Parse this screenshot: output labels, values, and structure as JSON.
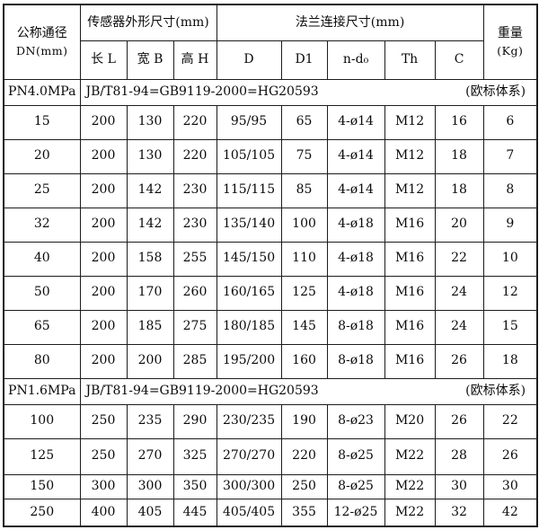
{
  "colors": {
    "border": "#1c1c1c",
    "text": "#0a0a0a",
    "background": "#ffffff"
  },
  "table": {
    "header": {
      "dn_line1": "公称通径",
      "dn_line2": "DN(mm)",
      "sensor_group_label": "传感器外形尺寸(mm)",
      "flange_group_label": "法兰连接尺寸(mm)",
      "weight_line1": "重量",
      "weight_line2": "(Kg)",
      "sub_labels": [
        "长 L",
        "宽 B",
        "高 H",
        "D",
        "D1",
        "n-d₀",
        "Th",
        "C"
      ]
    },
    "sections": [
      {
        "pressure": "PN4.0MPa",
        "standard": "JB/T81-94=GB9119-2000=HG20593",
        "note": "(欧标体系)",
        "rows": [
          [
            "15",
            "200",
            "130",
            "220",
            "95/95",
            "65",
            "4-ø14",
            "M12",
            "16",
            "6"
          ],
          [
            "20",
            "200",
            "130",
            "220",
            "105/105",
            "75",
            "4-ø14",
            "M12",
            "18",
            "7"
          ],
          [
            "25",
            "200",
            "142",
            "230",
            "115/115",
            "85",
            "4-ø14",
            "M12",
            "18",
            "8"
          ],
          [
            "32",
            "200",
            "142",
            "230",
            "135/140",
            "100",
            "4-ø18",
            "M16",
            "20",
            "9"
          ],
          [
            "40",
            "200",
            "158",
            "255",
            "145/150",
            "110",
            "4-ø18",
            "M16",
            "22",
            "10"
          ],
          [
            "50",
            "200",
            "170",
            "260",
            "160/165",
            "125",
            "4-ø18",
            "M16",
            "24",
            "12"
          ],
          [
            "65",
            "200",
            "185",
            "275",
            "180/185",
            "145",
            "8-ø18",
            "M16",
            "24",
            "15"
          ],
          [
            "80",
            "200",
            "200",
            "285",
            "195/200",
            "160",
            "8-ø18",
            "M16",
            "26",
            "18"
          ]
        ]
      },
      {
        "pressure": "PN1.6MPa",
        "standard": "JB/T81-94=GB9119-2000=HG20593",
        "note": "(欧标体系)",
        "rows": [
          [
            "100",
            "250",
            "235",
            "290",
            "230/235",
            "190",
            "8-ø23",
            "M20",
            "26",
            "22"
          ],
          [
            "125",
            "250",
            "270",
            "325",
            "270/270",
            "220",
            "8-ø25",
            "M22",
            "28",
            "26"
          ],
          [
            "150",
            "300",
            "300",
            "350",
            "300/300",
            "250",
            "8-ø25",
            "M22",
            "30",
            "30"
          ],
          [
            "250",
            "400",
            "405",
            "445",
            "405/405",
            "355",
            "12-ø25",
            "M22",
            "32",
            "42"
          ]
        ]
      }
    ]
  }
}
